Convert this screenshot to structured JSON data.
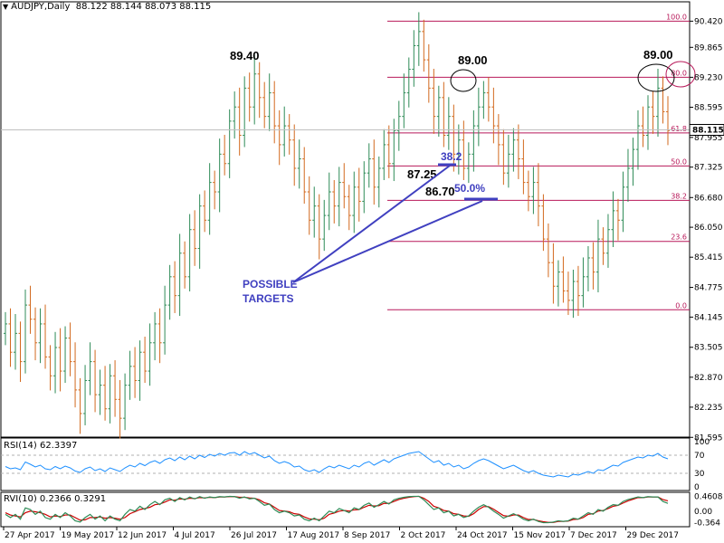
{
  "header": {
    "title": "AUDJPY,Daily",
    "ohlc": "88.122 88.144 88.073 88.115"
  },
  "colors": {
    "bull": "#2e8b57",
    "bear": "#d2691e",
    "fib": "#b8195a",
    "annotation": "#4040c0",
    "rsi_line": "#1e90ff",
    "rvi_main": "#2e8b57",
    "rvi_signal": "#cc0000"
  },
  "chart_data": {
    "type": "candlestick",
    "symbol": "AUDJPY",
    "timeframe": "Daily",
    "price_axis": {
      "ticks": [
        "90.420",
        "89.865",
        "89.230",
        "88.595",
        "87.955",
        "87.325",
        "86.680",
        "86.050",
        "85.415",
        "84.775",
        "84.145",
        "83.505",
        "82.870",
        "82.235",
        "81.595"
      ],
      "current_price": "88.115",
      "range": [
        81.6,
        90.6
      ]
    },
    "x_ticks": [
      "27 Apr 2017",
      "19 May 2017",
      "12 Jun 2017",
      "4 Jul 2017",
      "26 Jul 2017",
      "17 Aug 2017",
      "8 Sep 2017",
      "2 Oct 2017",
      "24 Oct 2017",
      "15 Nov 2017",
      "7 Dec 2017",
      "29 Dec 2017"
    ],
    "fib_levels": [
      {
        "label": "100.0",
        "value": 90.42
      },
      {
        "label": "80.0",
        "value": 89.23
      },
      {
        "label": "61.8",
        "value": 88.05
      },
      {
        "label": "50.0",
        "value": 87.35
      },
      {
        "label": "38.2",
        "value": 86.62
      },
      {
        "label": "23.6",
        "value": 85.75
      },
      {
        "label": "0.0",
        "value": 84.3
      }
    ],
    "annotations": {
      "peak_left": "89.40",
      "peak_mid": "89.00",
      "peak_right": "89.00",
      "target1_value": "87.25",
      "target1_fib": "38.2",
      "target2_value": "86.70",
      "target2_fib": "50.0%",
      "targets_text_line1": "POSSIBLE",
      "targets_text_line2": "TARGETS"
    },
    "price_path": [
      84.0,
      83.4,
      83.8,
      83.2,
      84.4,
      84.1,
      83.6,
      84.0,
      83.3,
      82.9,
      83.5,
      83.0,
      83.7,
      83.2,
      82.6,
      82.1,
      82.8,
      83.2,
      82.5,
      82.7,
      82.2,
      82.9,
      82.4,
      82.0,
      82.7,
      83.1,
      82.8,
      83.4,
      83.0,
      83.6,
      84.0,
      83.6,
      84.4,
      85.0,
      84.6,
      85.5,
      85.0,
      86.0,
      85.6,
      86.5,
      86.2,
      87.0,
      86.8,
      87.6,
      87.4,
      88.3,
      88.6,
      88.0,
      89.0,
      88.6,
      89.3,
      88.8,
      88.4,
      88.9,
      88.2,
      87.8,
      88.2,
      87.9,
      87.3,
      87.5,
      86.8,
      86.2,
      86.5,
      85.8,
      86.3,
      86.8,
      86.5,
      87.0,
      86.7,
      86.3,
      86.9,
      86.6,
      87.2,
      87.5,
      86.9,
      87.3,
      87.8,
      87.4,
      88.1,
      88.4,
      88.9,
      89.4,
      89.9,
      90.2,
      89.6,
      89.0,
      88.4,
      88.8,
      88.0,
      88.4,
      87.6,
      87.9,
      87.3,
      87.6,
      88.2,
      88.6,
      88.9,
      88.6,
      88.2,
      87.8,
      87.2,
      87.6,
      87.9,
      87.5,
      87.0,
      86.7,
      87.0,
      86.5,
      85.8,
      85.3,
      84.8,
      85.1,
      84.7,
      84.5,
      84.9,
      84.6,
      85.0,
      85.4,
      85.1,
      85.8,
      85.5,
      86.0,
      86.4,
      86.2,
      86.9,
      87.3,
      87.7,
      88.2,
      88.0,
      88.6,
      88.4,
      89.0,
      88.5,
      88.1
    ],
    "rsi": {
      "label": "RSI(14) 62.3397",
      "ticks": [
        "100",
        "70",
        "30",
        "0"
      ],
      "values": [
        45,
        40,
        42,
        38,
        55,
        50,
        44,
        48,
        40,
        38,
        45,
        40,
        46,
        42,
        35,
        32,
        40,
        44,
        36,
        40,
        34,
        42,
        38,
        34,
        42,
        48,
        44,
        52,
        47,
        54,
        58,
        52,
        60,
        64,
        58,
        66,
        60,
        68,
        62,
        70,
        65,
        72,
        68,
        74,
        70,
        75,
        76,
        70,
        78,
        72,
        76,
        70,
        64,
        68,
        58,
        52,
        56,
        52,
        44,
        46,
        38,
        34,
        38,
        32,
        40,
        46,
        42,
        48,
        44,
        40,
        48,
        44,
        52,
        56,
        48,
        54,
        60,
        54,
        62,
        66,
        70,
        74,
        76,
        78,
        70,
        62,
        54,
        58,
        48,
        52,
        44,
        48,
        40,
        44,
        52,
        58,
        62,
        58,
        52,
        46,
        40,
        44,
        48,
        42,
        36,
        32,
        36,
        30,
        26,
        24,
        22,
        26,
        24,
        22,
        28,
        26,
        30,
        34,
        30,
        38,
        36,
        42,
        48,
        46,
        54,
        58,
        62,
        66,
        64,
        70,
        68,
        74,
        66,
        62
      ]
    },
    "rvi": {
      "label": "RVI(10) 0.2366 0.3291",
      "ticks": [
        "0.4608",
        "0.00",
        "-0.364"
      ],
      "main": [
        -0.1,
        -0.2,
        -0.1,
        -0.25,
        0.1,
        0.05,
        -0.1,
        0.0,
        -0.2,
        -0.25,
        -0.1,
        -0.2,
        -0.05,
        -0.15,
        -0.3,
        -0.34,
        -0.2,
        -0.1,
        -0.25,
        -0.15,
        -0.3,
        -0.15,
        -0.25,
        -0.3,
        -0.1,
        0.05,
        0.0,
        0.15,
        0.05,
        0.2,
        0.3,
        0.2,
        0.35,
        0.4,
        0.3,
        0.42,
        0.35,
        0.44,
        0.38,
        0.45,
        0.4,
        0.44,
        0.42,
        0.45,
        0.44,
        0.46,
        0.45,
        0.4,
        0.44,
        0.38,
        0.4,
        0.3,
        0.18,
        0.22,
        0.05,
        -0.05,
        0.0,
        -0.05,
        -0.15,
        -0.12,
        -0.25,
        -0.3,
        -0.22,
        -0.3,
        -0.15,
        0.0,
        -0.05,
        0.08,
        0.02,
        -0.05,
        0.1,
        0.05,
        0.18,
        0.25,
        0.12,
        0.2,
        0.3,
        0.22,
        0.35,
        0.4,
        0.43,
        0.45,
        0.46,
        0.46,
        0.35,
        0.2,
        0.05,
        0.1,
        -0.05,
        0.0,
        -0.15,
        -0.1,
        -0.2,
        -0.15,
        0.0,
        0.12,
        0.2,
        0.12,
        0.0,
        -0.1,
        -0.22,
        -0.15,
        -0.08,
        -0.15,
        -0.25,
        -0.3,
        -0.25,
        -0.32,
        -0.36,
        -0.36,
        -0.34,
        -0.3,
        -0.32,
        -0.3,
        -0.22,
        -0.25,
        -0.15,
        -0.05,
        -0.1,
        0.05,
        0.0,
        0.12,
        0.2,
        0.18,
        0.3,
        0.36,
        0.4,
        0.44,
        0.42,
        0.45,
        0.44,
        0.44,
        0.3,
        0.24
      ],
      "signal": [
        -0.05,
        -0.12,
        -0.15,
        -0.18,
        -0.05,
        0.0,
        -0.02,
        -0.05,
        -0.1,
        -0.18,
        -0.15,
        -0.17,
        -0.12,
        -0.12,
        -0.2,
        -0.28,
        -0.27,
        -0.2,
        -0.2,
        -0.18,
        -0.22,
        -0.2,
        -0.22,
        -0.25,
        -0.2,
        -0.08,
        -0.02,
        0.05,
        0.08,
        0.12,
        0.2,
        0.22,
        0.28,
        0.35,
        0.34,
        0.38,
        0.37,
        0.4,
        0.39,
        0.42,
        0.41,
        0.43,
        0.42,
        0.44,
        0.44,
        0.45,
        0.45,
        0.43,
        0.43,
        0.41,
        0.4,
        0.35,
        0.26,
        0.22,
        0.12,
        0.02,
        0.0,
        -0.02,
        -0.08,
        -0.1,
        -0.18,
        -0.24,
        -0.25,
        -0.27,
        -0.22,
        -0.1,
        -0.06,
        0.0,
        0.02,
        0.0,
        0.04,
        0.05,
        0.12,
        0.18,
        0.16,
        0.17,
        0.24,
        0.24,
        0.3,
        0.36,
        0.4,
        0.43,
        0.45,
        0.46,
        0.4,
        0.3,
        0.15,
        0.1,
        0.02,
        0.0,
        -0.08,
        -0.1,
        -0.15,
        -0.16,
        -0.08,
        0.05,
        0.14,
        0.14,
        0.06,
        -0.04,
        -0.14,
        -0.16,
        -0.12,
        -0.12,
        -0.2,
        -0.26,
        -0.26,
        -0.3,
        -0.33,
        -0.35,
        -0.35,
        -0.32,
        -0.32,
        -0.31,
        -0.26,
        -0.25,
        -0.2,
        -0.1,
        -0.08,
        0.0,
        0.02,
        0.08,
        0.15,
        0.18,
        0.25,
        0.32,
        0.37,
        0.42,
        0.42,
        0.44,
        0.44,
        0.44,
        0.36,
        0.32
      ]
    }
  }
}
